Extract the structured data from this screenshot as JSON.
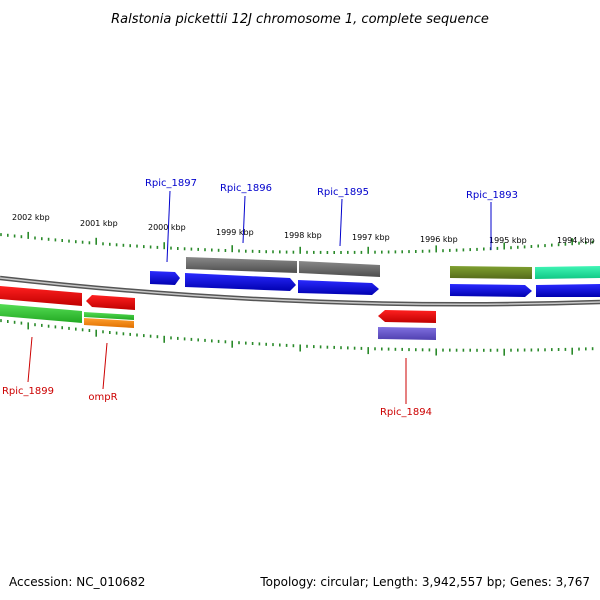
{
  "title": "Ralstonia pickettii 12J chromosome 1, complete sequence",
  "footer": {
    "accession": "Accession: NC_010682",
    "summary": "Topology: circular; Length: 3,942,557 bp; Genes: 3,767"
  },
  "tick_labels": [
    "2002 kbp",
    "2001 kbp",
    "2000 kbp",
    "1999 kbp",
    "1998 kbp",
    "1997 kbp",
    "1996 kbp",
    "1995 kbp",
    "1994 kbp"
  ],
  "gene_labels": {
    "forward": [
      "Rpic_1897",
      "Rpic_1896",
      "Rpic_1895",
      "Rpic_1893"
    ],
    "reverse": [
      "Rpic_1899",
      "ompR",
      "Rpic_1894"
    ]
  },
  "colors": {
    "forward_label": "#0000cc",
    "reverse_label": "#cc0000",
    "tick": "#2a8a2a",
    "backbone": "#888888",
    "cds_forward": "#0000ee",
    "cds_reverse": "#ee0000",
    "gene_gray": "#666666",
    "gene_olive": "#6b8e23",
    "gene_teal": "#1de9a0",
    "gene_green": "#33cc33",
    "gene_orange": "#ff8c00",
    "gene_purple": "#6a5acd"
  }
}
